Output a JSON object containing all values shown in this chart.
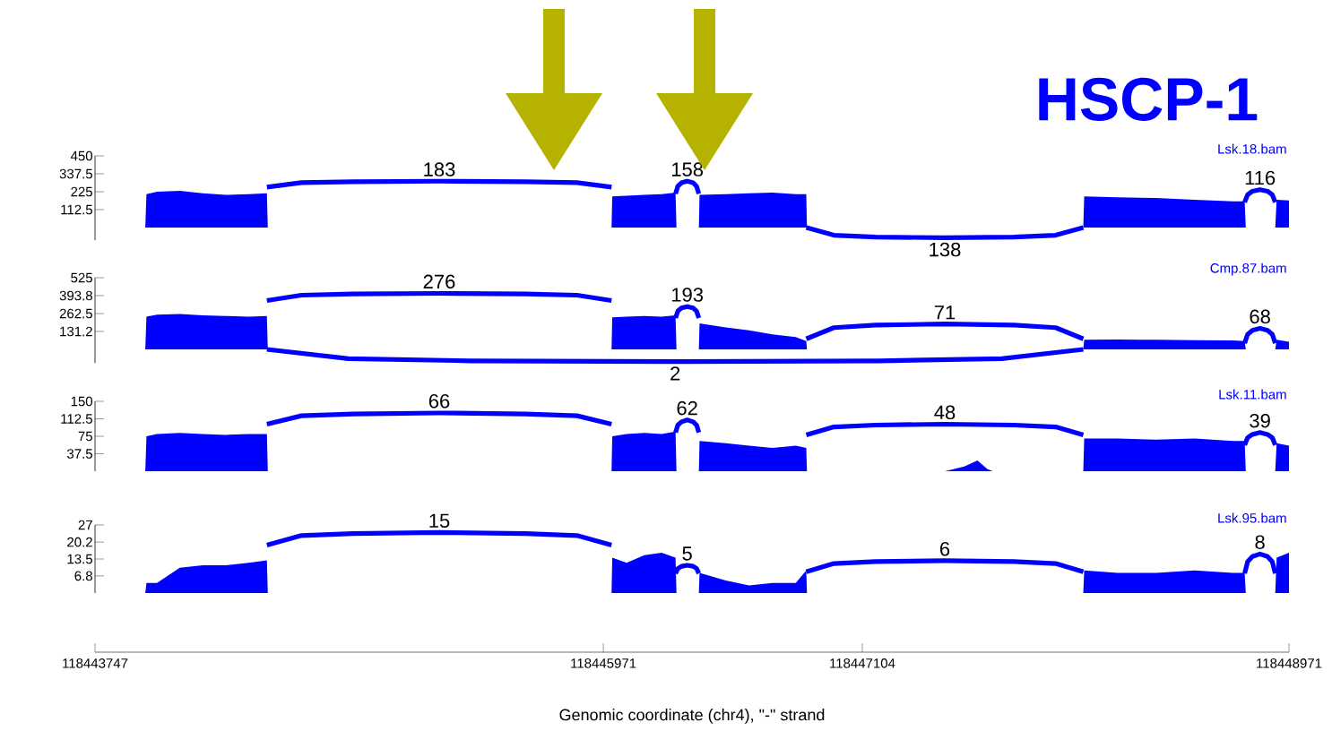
{
  "chart_data": [
    {
      "type": "area",
      "title": "HSCP-1",
      "tick_labels": "y",
      "xlim": [
        118443747,
        118448971
      ],
      "ylim": [
        -80,
        450
      ],
      "yticks": [
        112.5,
        225,
        337.5,
        450
      ],
      "x": [
        118443967,
        118443972,
        118444018,
        118444118,
        118444218,
        118444319,
        118444419,
        118444499,
        118444503,
        118446007,
        118446010,
        118446073,
        118446150,
        118446226,
        118446287,
        118446291,
        118446389,
        118446392,
        118446507,
        118446609,
        118446711,
        118446813,
        118446859,
        118446862,
        118447466,
        118447550,
        118447608,
        118447651,
        118447675,
        118448071,
        118448075,
        118448222,
        118448390,
        118448558,
        118448726,
        118448777,
        118448782,
        118448911,
        118448917,
        118448971
      ],
      "series": [
        {
          "name": "Lsk.18.bam",
          "color": "#0000ff",
          "values": [
            0,
            210,
            225,
            230,
            215,
            205,
            210,
            215,
            0,
            0,
            195,
            200,
            205,
            210,
            220,
            0,
            0,
            205,
            210,
            215,
            220,
            210,
            210,
            0,
            0,
            0,
            0,
            0,
            0,
            0,
            195,
            190,
            185,
            175,
            165,
            165,
            0,
            0,
            175,
            170
          ]
        },
        {
          "type": "line",
          "color": "#0000ff",
          "x": [
            118444499,
            118444650,
            118444876,
            118445253,
            118445630,
            118445856,
            118446007
          ],
          "values": [
            254,
            282,
            288,
            291,
            288,
            282,
            254
          ]
        },
        {
          "type": "line",
          "color": "#0000ff",
          "x": [
            118446287,
            118446297,
            118446313,
            118446338,
            118446364,
            118446379,
            118446389
          ],
          "values": [
            212,
            259,
            281,
            291,
            281,
            259,
            212
          ]
        },
        {
          "type": "line",
          "color": "#0000ff",
          "x": [
            118446859,
            118446980,
            118447162,
            118447465,
            118447768,
            118447950,
            118448071
          ],
          "values": [
            0,
            -48,
            -60,
            -64,
            -60,
            -48,
            0
          ]
        },
        {
          "type": "line",
          "color": "#0000ff",
          "x": [
            118448777,
            118448790,
            118448811,
            118448844,
            118448877,
            118448898,
            118448911
          ],
          "values": [
            159,
            206,
            228,
            238,
            228,
            206,
            159
          ]
        }
      ],
      "annotations": [
        {
          "text": "183",
          "x": 118445253,
          "y": 291
        },
        {
          "text": "158",
          "x": 118446338,
          "y": 291
        },
        {
          "text": "138",
          "x": 118447465,
          "y": -64
        },
        {
          "text": "116",
          "x": 118448844,
          "y": 238
        }
      ]
    },
    {
      "type": "area",
      "tick_labels": "y",
      "xlim": [
        118443747,
        118448971
      ],
      "ylim": [
        -100,
        525
      ],
      "yticks": [
        131.2,
        262.5,
        393.8,
        525
      ],
      "x": [
        118443967,
        118443972,
        118444018,
        118444118,
        118444218,
        118444319,
        118444419,
        118444499,
        118444503,
        118446007,
        118446010,
        118446073,
        118446150,
        118446226,
        118446287,
        118446291,
        118446389,
        118446392,
        118446507,
        118446609,
        118446711,
        118446813,
        118446859,
        118446862,
        118447466,
        118447550,
        118447608,
        118447651,
        118447675,
        118448071,
        118448075,
        118448222,
        118448390,
        118448558,
        118448726,
        118448777,
        118448782,
        118448911,
        118448917,
        118448971
      ],
      "series": [
        {
          "name": "Cmp.87.bam",
          "color": "#0000ff",
          "values": [
            0,
            240,
            255,
            260,
            250,
            245,
            240,
            245,
            0,
            0,
            235,
            240,
            245,
            240,
            250,
            0,
            0,
            190,
            160,
            140,
            110,
            90,
            60,
            0,
            0,
            0,
            0,
            0,
            0,
            0,
            70,
            72,
            70,
            68,
            65,
            60,
            0,
            0,
            70,
            55
          ]
        },
        {
          "type": "line",
          "color": "#0000ff",
          "x": [
            118444499,
            118444650,
            118444876,
            118445253,
            118445630,
            118445856,
            118446007
          ],
          "values": [
            358,
            397,
            406,
            410,
            406,
            397,
            358
          ]
        },
        {
          "type": "line",
          "color": "#0000ff",
          "x": [
            118446287,
            118446297,
            118446313,
            118446338,
            118446364,
            118446379,
            118446389
          ],
          "values": [
            230,
            280,
            303,
            314,
            303,
            280,
            230
          ]
        },
        {
          "type": "line",
          "color": "#0000ff",
          "x": [
            118446859,
            118446980,
            118447162,
            118447465,
            118447768,
            118447950,
            118448071
          ],
          "values": [
            77,
            159,
            178,
            186,
            178,
            159,
            77
          ]
        },
        {
          "type": "line",
          "color": "#0000ff",
          "x": [
            118448777,
            118448790,
            118448811,
            118448844,
            118448877,
            118448898,
            118448911
          ],
          "values": [
            45,
            110,
            140,
            154,
            140,
            110,
            45
          ]
        },
        {
          "type": "line",
          "color": "#0000ff",
          "x": [
            118444499,
            118444856,
            118445392,
            118446285,
            118447178,
            118447714,
            118448071
          ],
          "values": [
            0,
            -68,
            -84,
            -90,
            -84,
            -68,
            0
          ]
        }
      ],
      "annotations": [
        {
          "text": "276",
          "x": 118445253,
          "y": 410
        },
        {
          "text": "193",
          "x": 118446338,
          "y": 314
        },
        {
          "text": "71",
          "x": 118447465,
          "y": 186
        },
        {
          "text": "68",
          "x": 118448844,
          "y": 154
        },
        {
          "text": "2",
          "x": 118446285,
          "y": -90
        }
      ]
    },
    {
      "type": "area",
      "tick_labels": "y",
      "xlim": [
        118443747,
        118448971
      ],
      "ylim": [
        0,
        150
      ],
      "yticks": [
        37.5,
        75,
        112.5,
        150
      ],
      "x": [
        118443967,
        118443972,
        118444018,
        118444118,
        118444218,
        118444319,
        118444419,
        118444499,
        118444503,
        118446007,
        118446010,
        118446073,
        118446150,
        118446226,
        118446287,
        118446291,
        118446389,
        118446392,
        118446507,
        118446609,
        118446711,
        118446813,
        118446859,
        118446862,
        118447466,
        118447550,
        118447608,
        118447651,
        118447675,
        118448071,
        118448075,
        118448222,
        118448390,
        118448558,
        118448726,
        118448777,
        118448782,
        118448911,
        118448917,
        118448971
      ],
      "series": [
        {
          "name": "Lsk.11.bam",
          "color": "#0000ff",
          "values": [
            0,
            75,
            80,
            82,
            80,
            78,
            80,
            80,
            0,
            0,
            75,
            80,
            82,
            80,
            85,
            0,
            0,
            65,
            60,
            55,
            50,
            55,
            50,
            0,
            0,
            10,
            23,
            5,
            0,
            0,
            70,
            70,
            68,
            70,
            65,
            65,
            0,
            0,
            60,
            55
          ]
        },
        {
          "type": "line",
          "color": "#0000ff",
          "x": [
            118444499,
            118444650,
            118444876,
            118445253,
            118445630,
            118445856,
            118446007
          ],
          "values": [
            101,
            119,
            123,
            125,
            123,
            119,
            101
          ]
        },
        {
          "type": "line",
          "color": "#0000ff",
          "x": [
            118446287,
            118446297,
            118446313,
            118446338,
            118446364,
            118446379,
            118446389
          ],
          "values": [
            83,
            99,
            106,
            110,
            106,
            99,
            83
          ]
        },
        {
          "type": "line",
          "color": "#0000ff",
          "x": [
            118446859,
            118446980,
            118447162,
            118447465,
            118447768,
            118447950,
            118448071
          ],
          "values": [
            78,
            95,
            99,
            101,
            99,
            95,
            78
          ]
        },
        {
          "type": "line",
          "color": "#0000ff",
          "x": [
            118448777,
            118448790,
            118448811,
            118448844,
            118448877,
            118448898,
            118448911
          ],
          "values": [
            56,
            72,
            79,
            83,
            79,
            72,
            56
          ]
        }
      ],
      "annotations": [
        {
          "text": "66",
          "x": 118445253,
          "y": 125
        },
        {
          "text": "62",
          "x": 118446338,
          "y": 110
        },
        {
          "text": "48",
          "x": 118447465,
          "y": 101
        },
        {
          "text": "39",
          "x": 118448844,
          "y": 83
        }
      ]
    },
    {
      "type": "area",
      "xlabel": "Genomic coordinate (chr4), \"-\" strand",
      "xlim": [
        118443747,
        118448971
      ],
      "ylim": [
        0,
        27
      ],
      "xticks": [
        118443747,
        118445971,
        118447104,
        118448971
      ],
      "yticks": [
        6.8,
        13.5,
        20.2,
        27
      ],
      "x": [
        118443967,
        118443972,
        118444018,
        118444118,
        118444218,
        118444319,
        118444419,
        118444499,
        118444503,
        118446007,
        118446010,
        118446073,
        118446150,
        118446226,
        118446287,
        118446291,
        118446389,
        118446392,
        118446507,
        118446609,
        118446711,
        118446813,
        118446859,
        118446862,
        118447466,
        118447550,
        118447608,
        118447651,
        118447675,
        118448071,
        118448075,
        118448222,
        118448390,
        118448558,
        118448726,
        118448777,
        118448782,
        118448911,
        118448917,
        118448971
      ],
      "series": [
        {
          "name": "Lsk.95.bam",
          "color": "#0000ff",
          "values": [
            0,
            4,
            4,
            10,
            11,
            11,
            12,
            13,
            0,
            0,
            14,
            12,
            15,
            16,
            14,
            0,
            0,
            8,
            5,
            3,
            4,
            4,
            9,
            0,
            0,
            0,
            0,
            0,
            0,
            0,
            9,
            8,
            8,
            9,
            8,
            8,
            0,
            0,
            14,
            16
          ]
        },
        {
          "type": "line",
          "color": "#0000ff",
          "x": [
            118444499,
            118444650,
            118444876,
            118445253,
            118445630,
            118445856,
            118446007
          ],
          "values": [
            19,
            22.8,
            23.6,
            24,
            23.6,
            22.8,
            19
          ]
        },
        {
          "type": "line",
          "color": "#0000ff",
          "x": [
            118446287,
            118446297,
            118446313,
            118446338,
            118446364,
            118446379,
            118446389
          ],
          "values": [
            7.8,
            9.7,
            10.6,
            11,
            10.6,
            9.7,
            7.8
          ]
        },
        {
          "type": "line",
          "color": "#0000ff",
          "x": [
            118446859,
            118446980,
            118447162,
            118447465,
            118447768,
            118447950,
            118448071
          ],
          "values": [
            8.4,
            11.7,
            12.5,
            12.8,
            12.5,
            11.7,
            8.4
          ]
        },
        {
          "type": "line",
          "color": "#0000ff",
          "x": [
            118448777,
            118448790,
            118448811,
            118448844,
            118448877,
            118448898,
            118448911
          ],
          "values": [
            7.8,
            12.4,
            14.5,
            15.5,
            14.5,
            12.4,
            7.8
          ]
        }
      ],
      "annotations": [
        {
          "text": "15",
          "x": 118445253,
          "y": 24
        },
        {
          "text": "5",
          "x": 118446338,
          "y": 11
        },
        {
          "text": "6",
          "x": 118447465,
          "y": 12.8
        },
        {
          "text": "8",
          "x": 118448844,
          "y": 15.5
        }
      ]
    }
  ]
}
